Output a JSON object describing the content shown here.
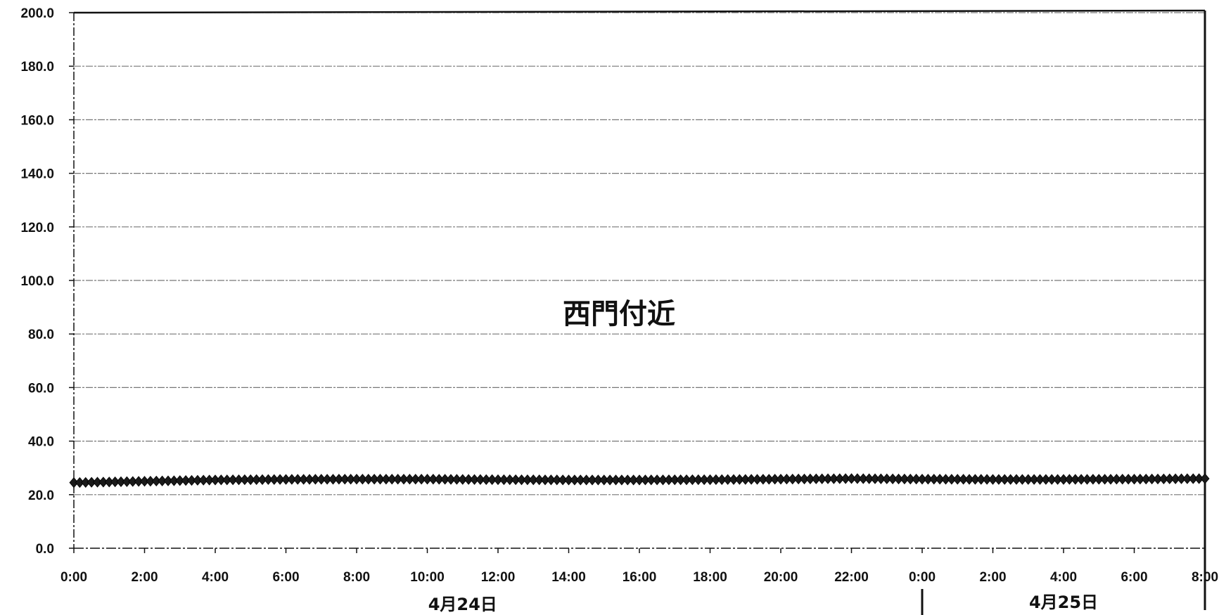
{
  "chart_data": {
    "type": "line",
    "title": "西門付近",
    "xlabel": "",
    "ylabel": "",
    "ylim": [
      0,
      200
    ],
    "yticks": [
      "0.0",
      "20.0",
      "40.0",
      "60.0",
      "80.0",
      "100.0",
      "120.0",
      "140.0",
      "160.0",
      "180.0",
      "200.0"
    ],
    "xlim": [
      "4月24日 0:00",
      "4月25日 8:00"
    ],
    "xticks": [
      "0:00",
      "2:00",
      "4:00",
      "6:00",
      "8:00",
      "10:00",
      "12:00",
      "14:00",
      "16:00",
      "18:00",
      "20:00",
      "22:00",
      "0:00",
      "2:00",
      "4:00",
      "6:00",
      "8:00"
    ],
    "day_labels": [
      "4月24日",
      "4月25日"
    ],
    "grid": true,
    "marker": "diamond",
    "colors": {
      "series": "#1a1a1a",
      "grid": "#777777",
      "axis": "#111111"
    },
    "series": [
      {
        "x_start": "4月24日 0:00",
        "x_end": "4月25日 8:00",
        "interval_minutes": 10,
        "values": [
          24.5,
          25.0,
          25.5,
          25.7,
          25.8,
          25.8,
          25.6,
          25.5,
          25.5,
          25.6,
          25.8,
          26.0,
          25.8,
          25.7,
          25.7,
          25.8,
          26.0
        ]
      }
    ]
  }
}
